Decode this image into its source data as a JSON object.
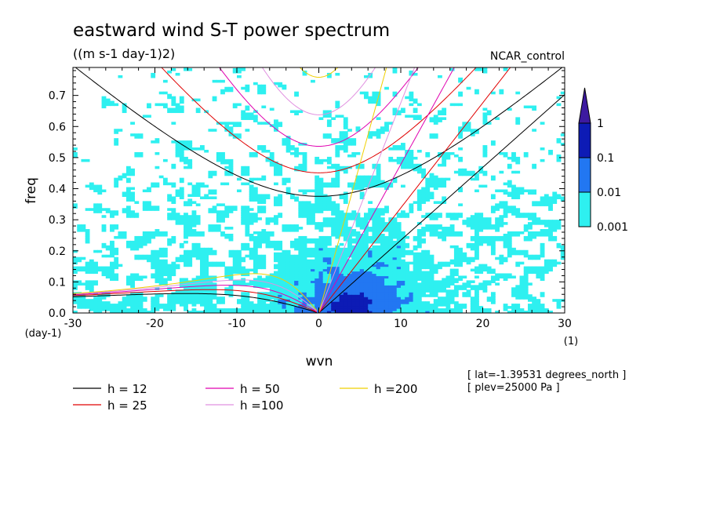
{
  "chart_data": {
    "type": "heatmap",
    "title": "eastward wind S-T power spectrum",
    "subtitle": "((m s-1 day-1)2)",
    "run_label": "NCAR_control",
    "xlabel": "wvn",
    "ylabel": "freq",
    "x_unit": "(1)",
    "y_unit": "(day-1)",
    "xlim": [
      -30,
      30
    ],
    "ylim": [
      0,
      0.79
    ],
    "x_ticks": [
      -30,
      -20,
      -10,
      0,
      10,
      20,
      30
    ],
    "x_tick_labels": [
      "-30",
      "-20",
      "-10",
      "0",
      "10",
      "20",
      "30"
    ],
    "y_ticks": [
      0,
      0.1,
      0.2,
      0.3,
      0.4,
      0.5,
      0.6,
      0.7
    ],
    "y_tick_labels": [
      "0.0",
      "0.1",
      "0.2",
      "0.3",
      "0.4",
      "0.5",
      "0.6",
      "0.7"
    ],
    "levels": [
      0.001,
      0.01,
      0.1,
      1
    ],
    "level_labels": [
      "0.001",
      "0.01",
      "0.1",
      "1"
    ],
    "level_colors": [
      "#2ef0f0",
      "#2277f2",
      "#0d1bb5",
      "#3d1aa0"
    ],
    "dispersion_curves": [
      {
        "name": "h = 12",
        "h": 12,
        "color": "#000000"
      },
      {
        "name": "h = 25",
        "h": 25,
        "color": "#e00000"
      },
      {
        "name": "h = 50",
        "h": 50,
        "color": "#e000b0"
      },
      {
        "name": "h =100",
        "h": 100,
        "color": "#e090e0"
      },
      {
        "name": "h =200",
        "h": 200,
        "color": "#f0d000"
      }
    ],
    "annotations": [
      "[ lat=-1.39531 degrees_north ]",
      "[ plev=25000 Pa ]"
    ]
  }
}
